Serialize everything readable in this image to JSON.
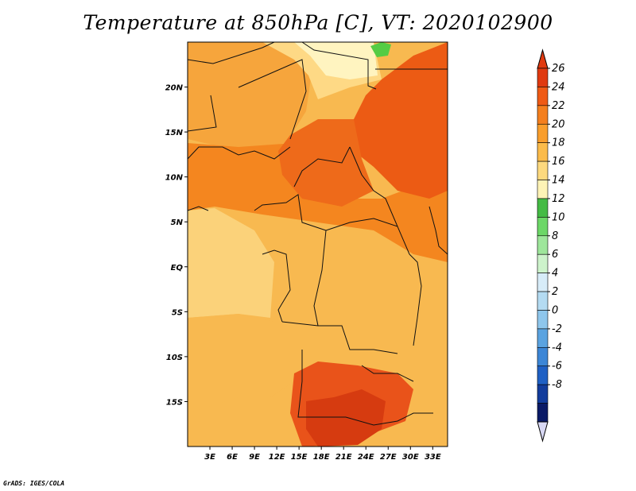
{
  "title": "Temperature at 850hPa [C], VT: 2020102900",
  "credit": "GrADS: IGES/COLA",
  "map": {
    "lon_range": [
      0,
      35
    ],
    "lat_range": [
      -20,
      25
    ],
    "lon_ticks": [
      "3E",
      "6E",
      "9E",
      "12E",
      "15E",
      "18E",
      "21E",
      "24E",
      "27E",
      "30E",
      "33E"
    ],
    "lat_ticks": [
      "20N",
      "15N",
      "10N",
      "5N",
      "EQ",
      "5S",
      "10S",
      "15S"
    ],
    "regions": [
      {
        "name": "north-land",
        "color": "#f6a53c"
      },
      {
        "name": "sahara-cool",
        "color": "#fed985"
      },
      {
        "name": "sahara-coolest",
        "color": "#fff4c0"
      },
      {
        "name": "green-spot",
        "color": "#55cc44"
      },
      {
        "name": "east-hot",
        "color": "#ec5b14"
      },
      {
        "name": "sudan-warm",
        "color": "#f4861f"
      },
      {
        "name": "chad-hot",
        "color": "#ee6a1a"
      },
      {
        "name": "west-coast-cool",
        "color": "#fbd27a"
      },
      {
        "name": "congo-mild",
        "color": "#f8b950"
      },
      {
        "name": "south-hot",
        "color": "#e9531a"
      },
      {
        "name": "south-hottest",
        "color": "#d63b10"
      }
    ]
  },
  "colorbar": {
    "labels": [
      "26",
      "24",
      "22",
      "20",
      "18",
      "16",
      "14",
      "12",
      "10",
      "8",
      "6",
      "4",
      "2",
      "0",
      "-2",
      "-4",
      "-6",
      "-8"
    ],
    "colors": [
      "#e03a10",
      "#ef5a15",
      "#f47f1e",
      "#f99e2c",
      "#fbbb4a",
      "#fdd97e",
      "#fef3b6",
      "#44bb44",
      "#6cd767",
      "#9ee69b",
      "#cdf3cb",
      "#d7ecf8",
      "#b4dbf2",
      "#8ec6ec",
      "#5aa3e0",
      "#3c86d6",
      "#1f60c4",
      "#123c9c",
      "#0a1a66"
    ],
    "top_cap_color": "#e03a10",
    "bottom_cap_color": "#d8d8f4"
  }
}
